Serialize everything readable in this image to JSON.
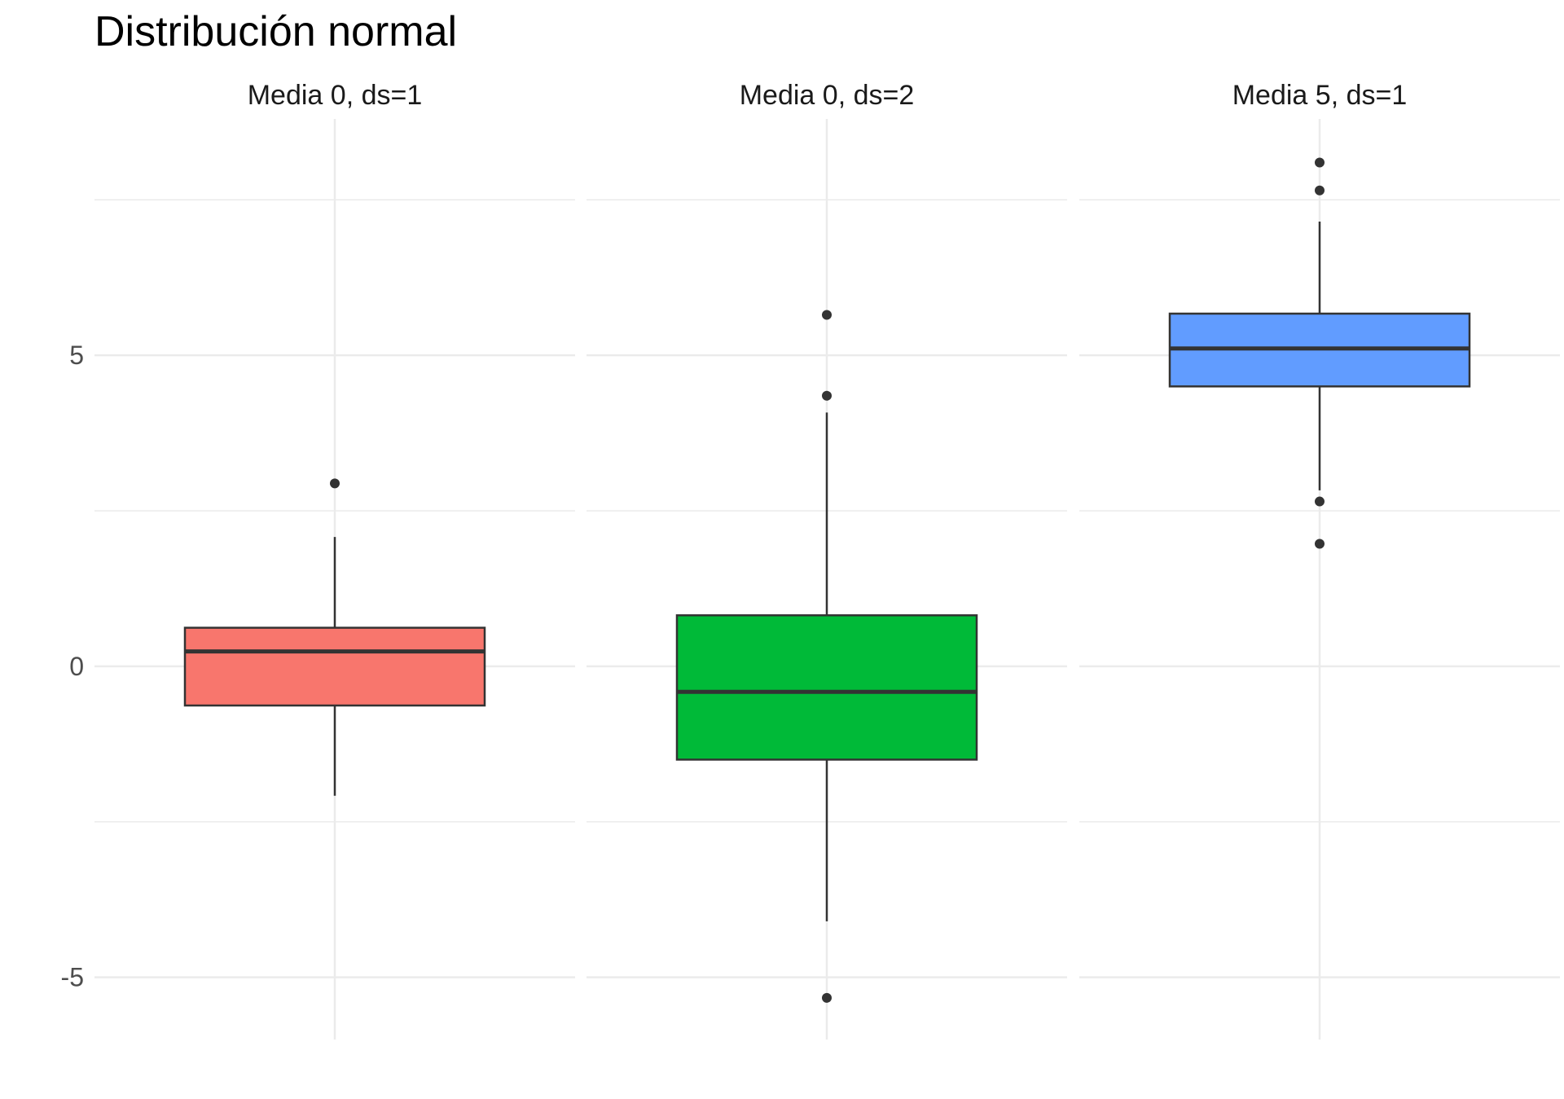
{
  "chart_data": {
    "type": "boxplot",
    "title": "Distribución normal",
    "xlabel": "",
    "ylabel": "",
    "ylim": [
      -6.0,
      8.8
    ],
    "y_ticks": [
      -5,
      0,
      5
    ],
    "y_tick_labels": [
      "-5",
      "0",
      "5"
    ],
    "y_minor_ticks": [
      -2.5,
      2.5,
      7.5
    ],
    "grid": true,
    "legend": "none",
    "facets": [
      {
        "label": "Media 0, ds=1",
        "color": "#F8766D",
        "whisker_low": -2.08,
        "q1": -0.63,
        "median": 0.24,
        "q3": 0.62,
        "whisker_high": 2.08,
        "outliers": [
          2.94
        ]
      },
      {
        "label": "Media 0, ds=2",
        "color": "#00BA38",
        "whisker_low": -4.1,
        "q1": -1.5,
        "median": -0.41,
        "q3": 0.82,
        "whisker_high": 4.08,
        "outliers": [
          4.35,
          5.65,
          -5.33
        ]
      },
      {
        "label": "Media 5, ds=1",
        "color": "#619CFF",
        "whisker_low": 2.83,
        "q1": 4.5,
        "median": 5.11,
        "q3": 5.67,
        "whisker_high": 7.15,
        "outliers": [
          7.65,
          8.1,
          2.65,
          1.97
        ]
      }
    ]
  }
}
